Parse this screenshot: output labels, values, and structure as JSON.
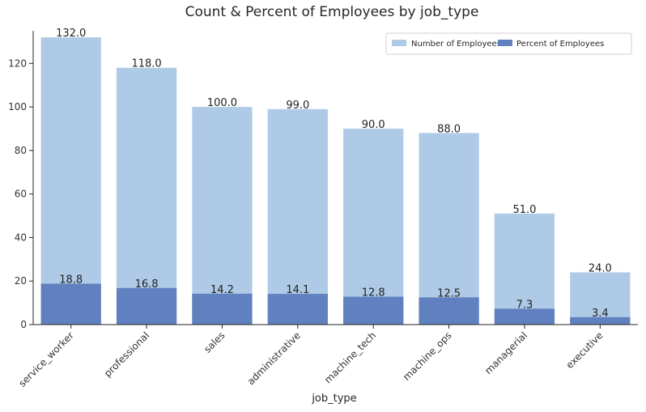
{
  "chart_data": {
    "type": "bar",
    "title": "Count & Percent of Employees by job_type",
    "xlabel": "job_type",
    "ylabel": "",
    "categories": [
      "service_worker",
      "professional",
      "sales",
      "administrative",
      "machine_tech",
      "machine_ops",
      "managerial",
      "executive"
    ],
    "series": [
      {
        "name": "Number of Employees",
        "color": "#aecae6",
        "values": [
          132.0,
          118.0,
          100.0,
          99.0,
          90.0,
          88.0,
          51.0,
          24.0
        ],
        "labels": [
          "132.0",
          "118.0",
          "100.0",
          "99.0",
          "90.0",
          "88.0",
          "51.0",
          "24.0"
        ]
      },
      {
        "name": "Percent of Employees",
        "color": "#6080bf",
        "values": [
          18.8,
          16.8,
          14.2,
          14.1,
          12.8,
          12.5,
          7.3,
          3.4
        ],
        "labels": [
          "18.8",
          "16.8",
          "14.2",
          "14.1",
          "12.8",
          "12.5",
          "7.3",
          "3.4"
        ]
      }
    ],
    "ylim": [
      0,
      135
    ],
    "yticks": [
      "0",
      "20",
      "40",
      "60",
      "80",
      "100",
      "120"
    ],
    "overlay": true,
    "grid": false,
    "legend_position": "top-right"
  }
}
